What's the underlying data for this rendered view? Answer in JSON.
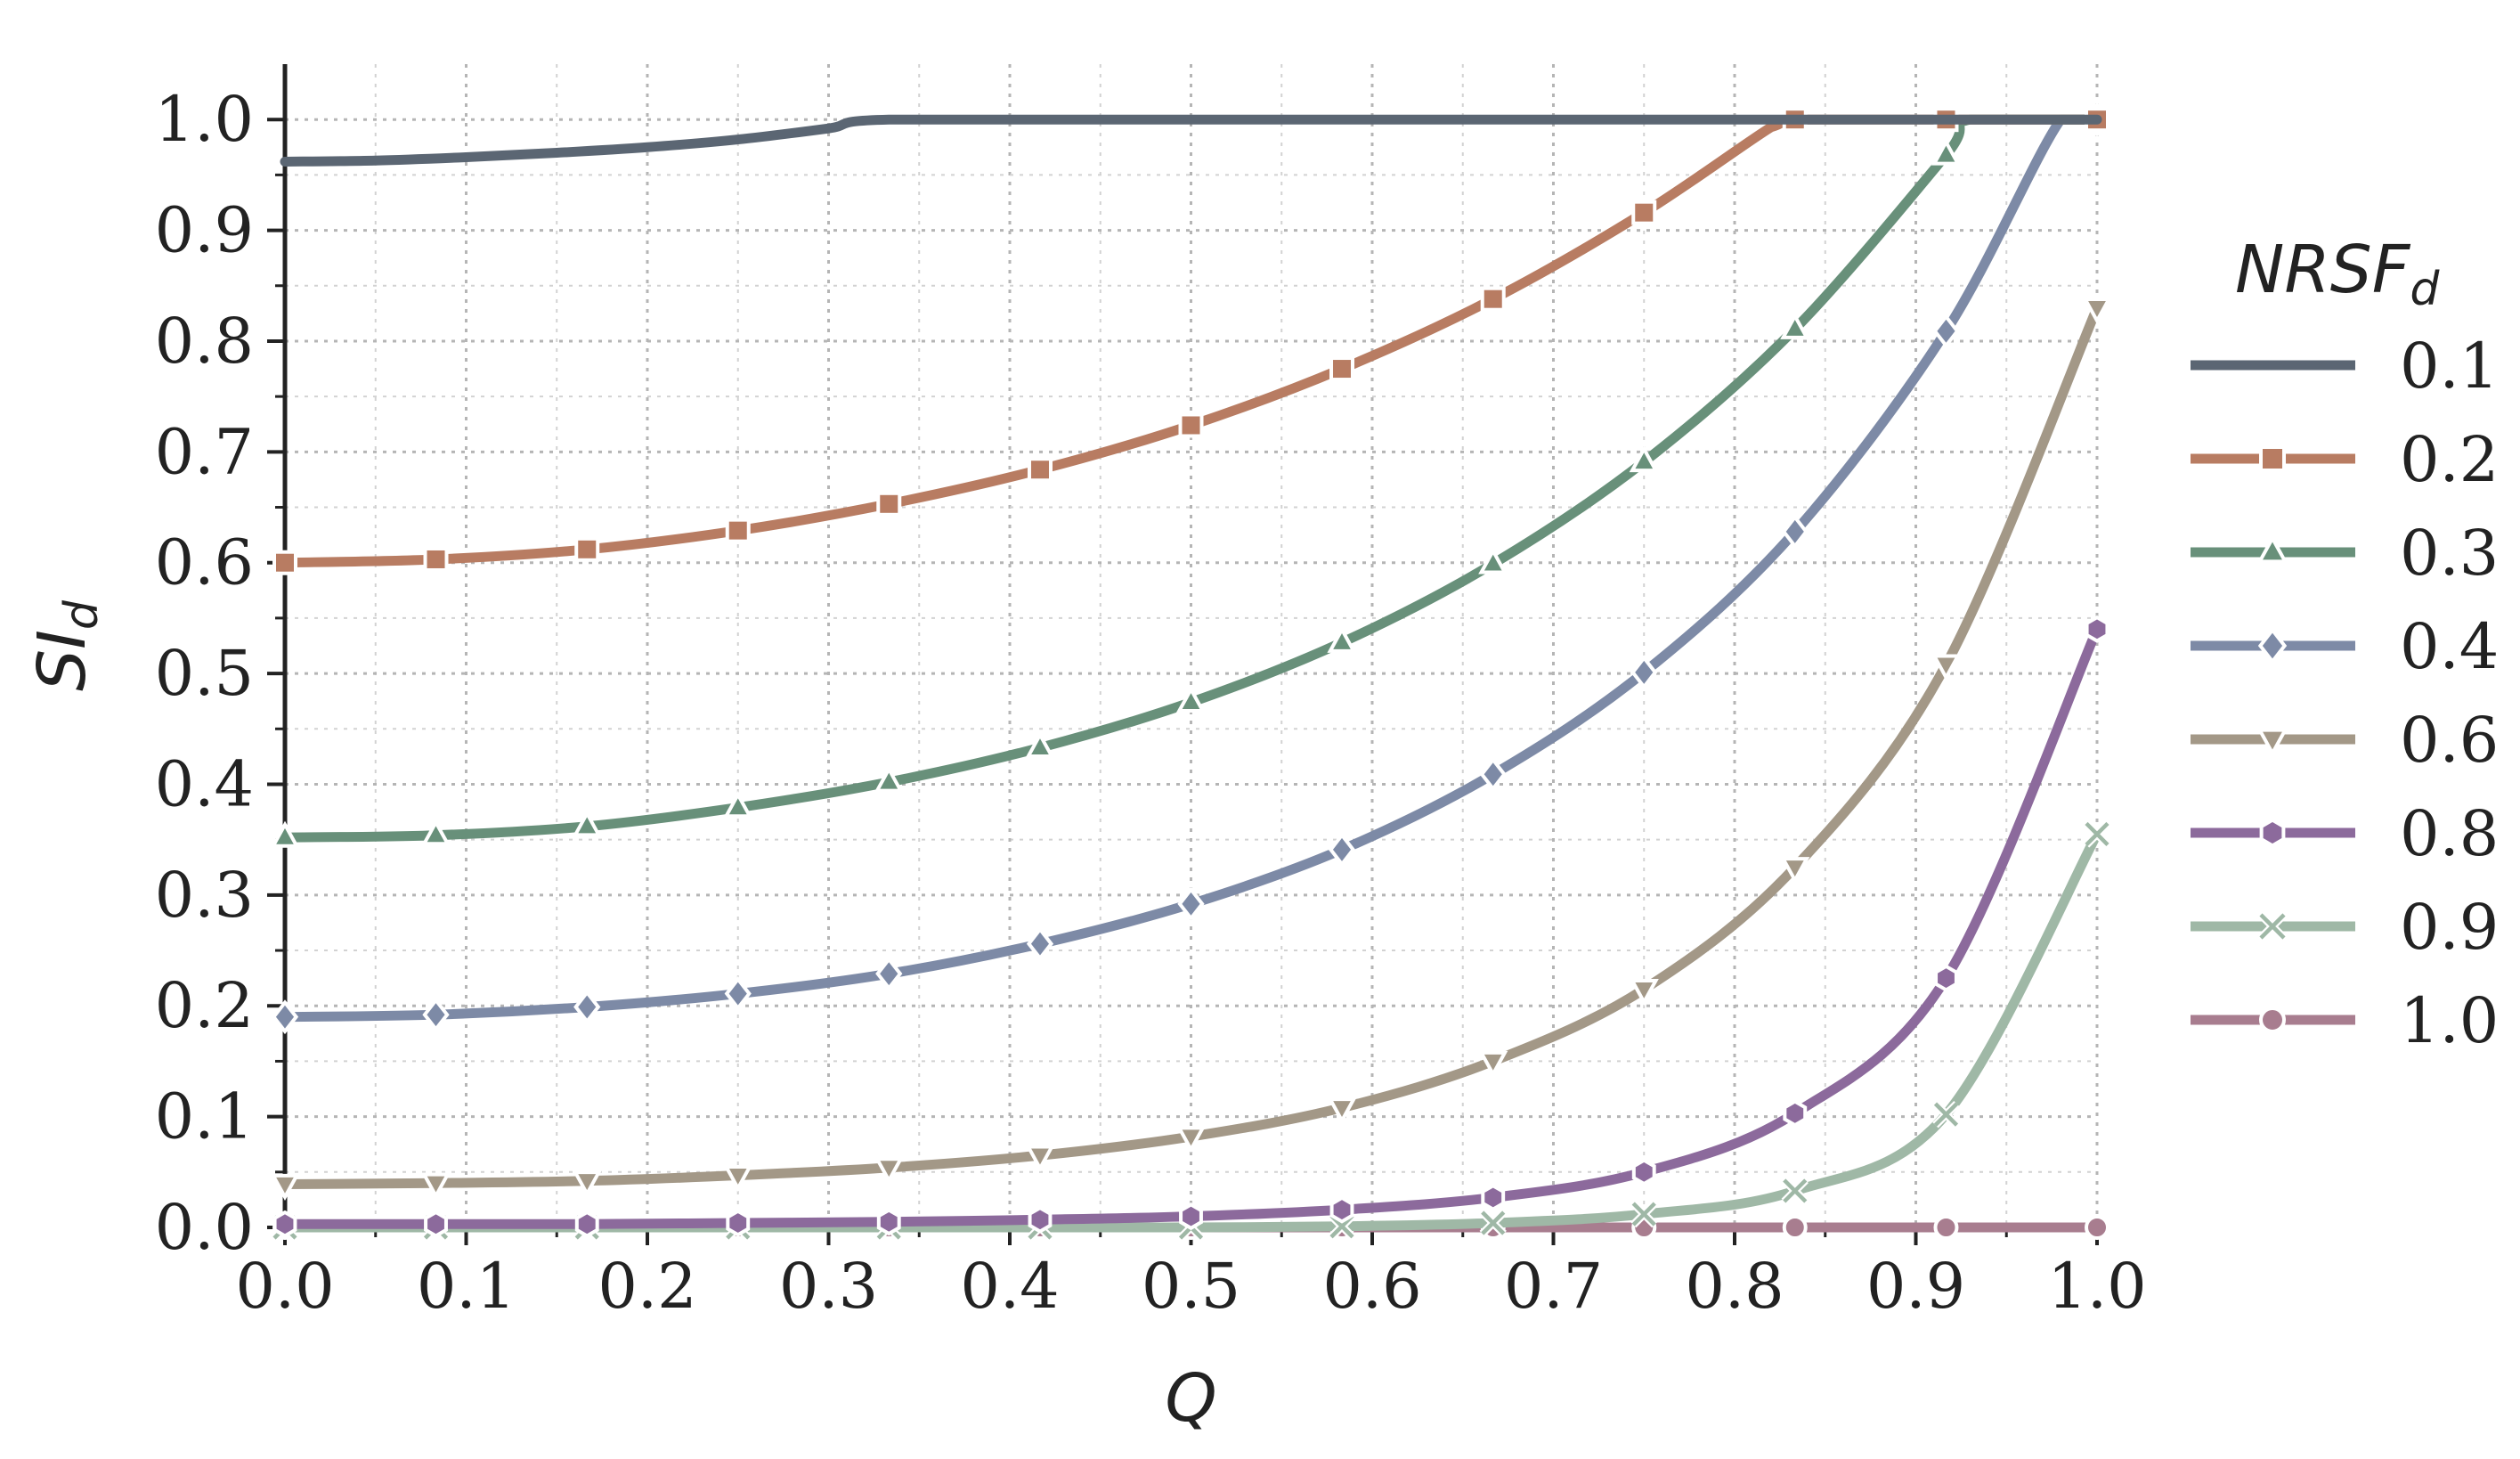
{
  "chart_data": {
    "type": "line",
    "xlabel": "Q",
    "ylabel": "SI",
    "ylabel_sub": "d",
    "xlim": [
      0.0,
      1.0
    ],
    "ylim": [
      0.0,
      1.05
    ],
    "xticks": [
      "0.0",
      "0.1",
      "0.2",
      "0.3",
      "0.4",
      "0.5",
      "0.6",
      "0.7",
      "0.8",
      "0.9",
      "1.0"
    ],
    "yticks": [
      "0.0",
      "0.1",
      "0.2",
      "0.3",
      "0.4",
      "0.5",
      "0.6",
      "0.7",
      "0.8",
      "0.9",
      "1.0"
    ],
    "grid": "dotted",
    "legend": {
      "title": "NRSF",
      "title_sub": "d",
      "placement": "right"
    },
    "marker_x": [
      0.0,
      0.0833,
      0.1667,
      0.25,
      0.3333,
      0.4167,
      0.5,
      0.5833,
      0.6667,
      0.75,
      0.8333,
      0.9167,
      1.0
    ],
    "series": [
      {
        "name": "0.1",
        "color": "#5b6673",
        "marker": "none",
        "x": [
          0.0,
          0.05,
          0.1,
          0.15,
          0.2,
          0.25,
          0.3,
          0.3333,
          0.5,
          0.7,
          0.9,
          1.0
        ],
        "y": [
          0.962,
          0.963,
          0.966,
          0.97,
          0.975,
          0.982,
          0.992,
          1.0,
          1.0,
          1.0,
          1.0,
          1.0
        ]
      },
      {
        "name": "0.2",
        "color": "#b87c62",
        "marker": "square",
        "x": [
          0.0,
          0.0833,
          0.1667,
          0.25,
          0.3333,
          0.4167,
          0.5,
          0.5833,
          0.6667,
          0.75,
          0.82,
          0.8333,
          0.9167,
          1.0
        ],
        "y": [
          0.6,
          0.603,
          0.612,
          0.629,
          0.653,
          0.684,
          0.724,
          0.775,
          0.838,
          0.916,
          0.993,
          1.0,
          1.0,
          1.0
        ]
      },
      {
        "name": "0.3",
        "color": "#68907a",
        "marker": "triangle-up",
        "x": [
          0.0,
          0.0833,
          0.1667,
          0.25,
          0.3333,
          0.4167,
          0.5,
          0.5833,
          0.6667,
          0.75,
          0.8333,
          0.9167,
          0.93,
          1.0
        ],
        "y": [
          0.352,
          0.354,
          0.362,
          0.379,
          0.402,
          0.433,
          0.474,
          0.528,
          0.599,
          0.691,
          0.811,
          0.968,
          1.0,
          1.0
        ]
      },
      {
        "name": "0.4",
        "color": "#7d8aa6",
        "marker": "diamond",
        "x": [
          0.0,
          0.0833,
          0.1667,
          0.25,
          0.3333,
          0.4167,
          0.5,
          0.5833,
          0.6667,
          0.75,
          0.8333,
          0.9167,
          0.98,
          1.0
        ],
        "y": [
          0.19,
          0.192,
          0.199,
          0.211,
          0.229,
          0.256,
          0.292,
          0.341,
          0.409,
          0.501,
          0.628,
          0.809,
          1.0,
          1.0
        ]
      },
      {
        "name": "0.6",
        "color": "#a39887",
        "marker": "triangle-down",
        "x": [
          0.0,
          0.0833,
          0.1667,
          0.25,
          0.3333,
          0.4167,
          0.5,
          0.5833,
          0.6667,
          0.75,
          0.8333,
          0.9167,
          1.0
        ],
        "y": [
          0.039,
          0.04,
          0.042,
          0.047,
          0.054,
          0.065,
          0.082,
          0.108,
          0.15,
          0.215,
          0.325,
          0.508,
          0.83
        ]
      },
      {
        "name": "0.8",
        "color": "#8c6a9c",
        "marker": "hexagon",
        "x": [
          0.0,
          0.0833,
          0.1667,
          0.25,
          0.3333,
          0.4167,
          0.5,
          0.5833,
          0.6667,
          0.75,
          0.8333,
          0.9167,
          1.0
        ],
        "y": [
          0.003,
          0.003,
          0.003,
          0.004,
          0.005,
          0.007,
          0.01,
          0.016,
          0.027,
          0.05,
          0.103,
          0.225,
          0.54
        ]
      },
      {
        "name": "0.9",
        "color": "#9fb8a6",
        "marker": "x",
        "x": [
          0.0,
          0.0833,
          0.1667,
          0.25,
          0.3333,
          0.4167,
          0.5,
          0.5833,
          0.6667,
          0.75,
          0.8333,
          0.9167,
          1.0
        ],
        "y": [
          0.0,
          0.0,
          0.0,
          0.0,
          0.0,
          0.0,
          0.0,
          0.001,
          0.004,
          0.012,
          0.033,
          0.102,
          0.355
        ]
      },
      {
        "name": "1.0",
        "color": "#a87d8f",
        "marker": "circle",
        "x": [
          0.0,
          0.0833,
          0.1667,
          0.25,
          0.3333,
          0.4167,
          0.5,
          0.5833,
          0.6667,
          0.75,
          0.8333,
          0.9167,
          1.0
        ],
        "y": [
          0.0,
          0.0,
          0.0,
          0.0,
          0.0,
          0.0,
          0.0,
          0.0,
          0.0,
          0.0,
          0.0,
          0.0,
          0.0
        ]
      }
    ]
  }
}
